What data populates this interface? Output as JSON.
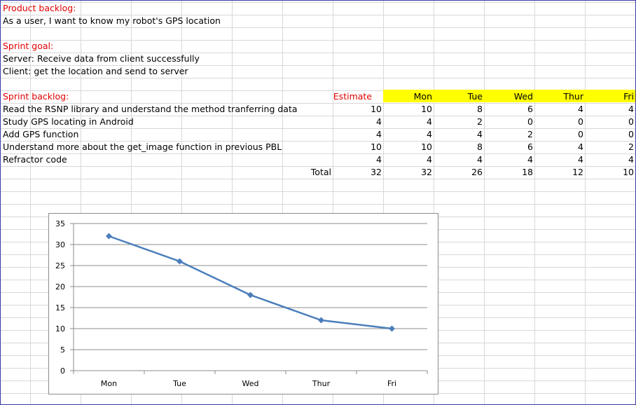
{
  "product_backlog": {
    "label": "Product backlog:",
    "story": "As a user, I want to know my robot's GPS location"
  },
  "sprint_goal": {
    "label": "Sprint goal:",
    "server": "Server: Receive data from client successfully",
    "client": "Client: get the location and send to server"
  },
  "sprint_backlog": {
    "label": "Sprint backlog:",
    "estimate_header": "Estimate",
    "days": [
      "Mon",
      "Tue",
      "Wed",
      "Thur",
      "Fri"
    ],
    "tasks": [
      {
        "name": "Read the RSNP library and understand the method tranferring data",
        "estimate": "10",
        "days": [
          "10",
          "8",
          "6",
          "4",
          "4"
        ]
      },
      {
        "name": "Study GPS locating in Android",
        "estimate": "4",
        "days": [
          "4",
          "2",
          "0",
          "0",
          "0"
        ]
      },
      {
        "name": "Add GPS function",
        "estimate": "4",
        "days": [
          "4",
          "4",
          "2",
          "0",
          "0"
        ]
      },
      {
        "name": "Understand more about the get_image function in previous PBL",
        "estimate": "10",
        "days": [
          "10",
          "8",
          "6",
          "4",
          "2"
        ]
      },
      {
        "name": "Refractor code",
        "estimate": "4",
        "days": [
          "4",
          "4",
          "4",
          "4",
          "4"
        ]
      }
    ],
    "total_label": "Total",
    "total_estimate": "32",
    "totals": [
      "32",
      "26",
      "18",
      "12",
      "10"
    ]
  },
  "colors": {
    "label_red": "#e00000",
    "header_yellow": "#ffff00",
    "line_blue": "#4a7ebb",
    "gridline": "#8c8c8c"
  },
  "chart_data": {
    "type": "line",
    "categories": [
      "Mon",
      "Tue",
      "Wed",
      "Thur",
      "Fri"
    ],
    "series": [
      {
        "values": [
          32,
          26,
          18,
          12,
          10
        ]
      }
    ],
    "ylim": [
      0,
      35
    ],
    "yticks": [
      "0",
      "5",
      "10",
      "15",
      "20",
      "25",
      "30",
      "35"
    ],
    "grid": true,
    "marker": "diamond",
    "title": "",
    "xlabel": "",
    "ylabel": ""
  }
}
